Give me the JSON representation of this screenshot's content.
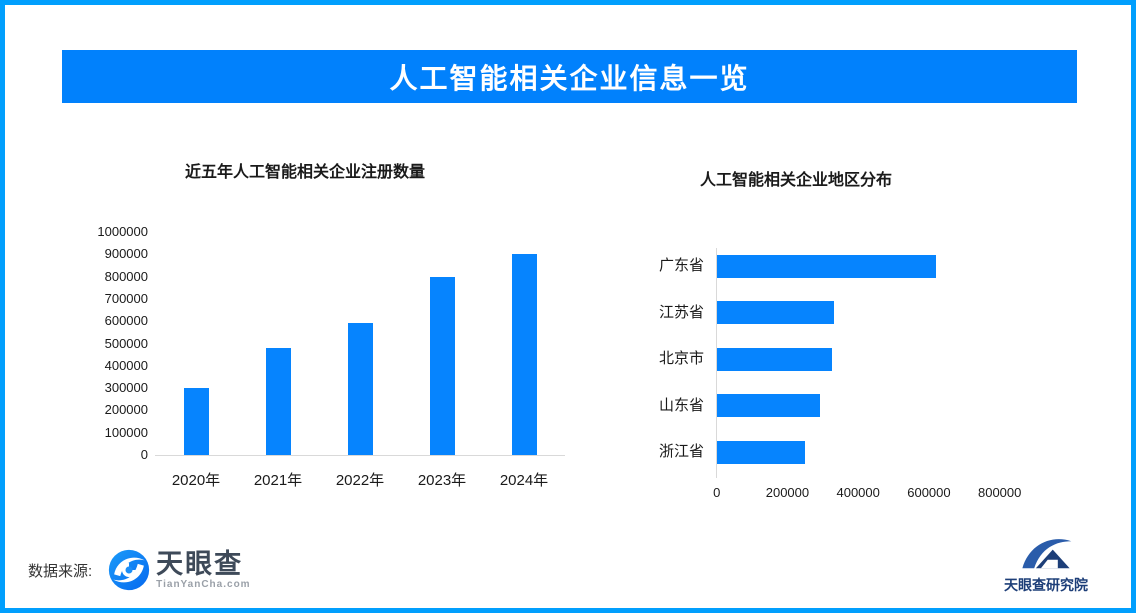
{
  "frame": {
    "border_color": "#019ffd",
    "background": "#ffffff"
  },
  "banner": {
    "title": "人工智能相关企业信息一览",
    "background": "#0181fc",
    "text_color": "#ffffff"
  },
  "chart_data": [
    {
      "type": "bar",
      "orientation": "vertical",
      "title": "近五年人工智能相关企业注册数量",
      "categories": [
        "2020年",
        "2021年",
        "2022年",
        "2023年",
        "2024年"
      ],
      "values": [
        300000,
        480000,
        590000,
        800000,
        900000
      ],
      "xlabel": "",
      "ylabel": "",
      "ylim": [
        0,
        1000000
      ],
      "ytick_step": 100000,
      "grid": false,
      "legend": false,
      "bar_color": "#0684fe"
    },
    {
      "type": "bar",
      "orientation": "horizontal",
      "title": "人工智能相关企业地区分布",
      "categories": [
        "广东省",
        "江苏省",
        "北京市",
        "山东省",
        "浙江省"
      ],
      "values": [
        620000,
        330000,
        325000,
        290000,
        250000
      ],
      "xlabel": "",
      "ylabel": "",
      "xlim": [
        0,
        800000
      ],
      "xtick_step": 200000,
      "grid": false,
      "legend": false,
      "bar_color": "#0684fe"
    }
  ],
  "footer": {
    "source_label": "数据来源:",
    "tianyancha": {
      "name": "天眼查",
      "domain": "TianYanCha.com",
      "icon": "tianyancha-eye-icon",
      "brand_color": "#0b84fb"
    },
    "research": {
      "name": "天眼查研究院",
      "icon": "tianyancha-research-icon",
      "brand_color": "#1d3e78"
    }
  }
}
